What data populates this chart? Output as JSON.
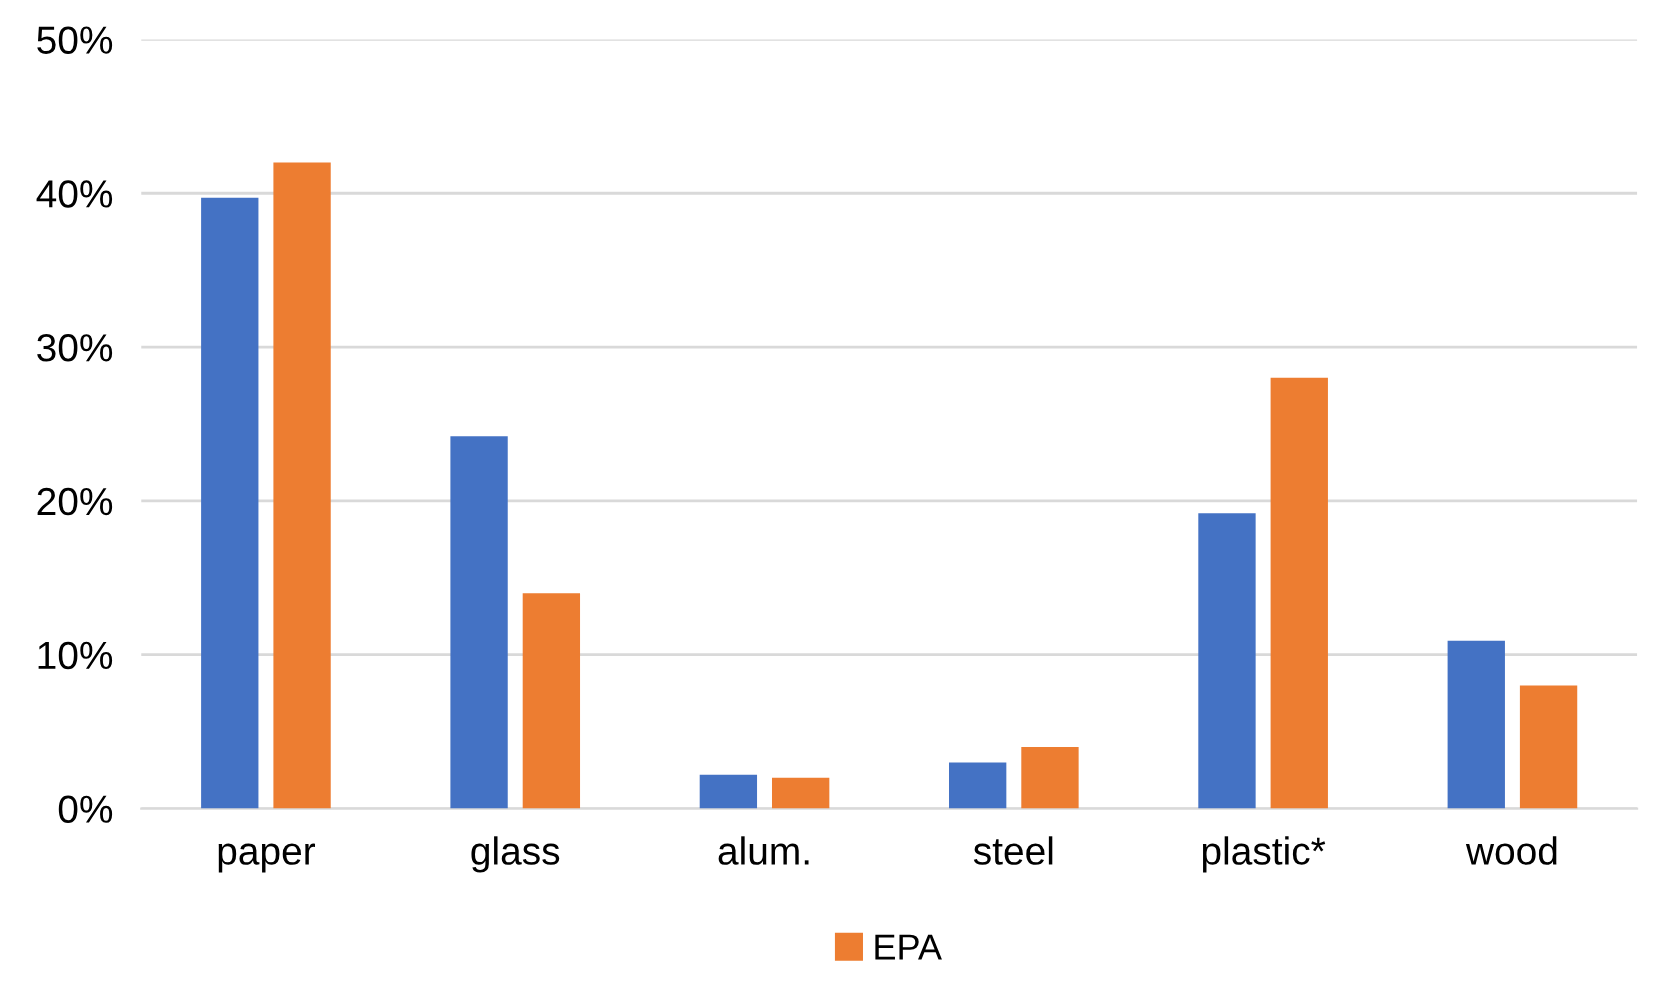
{
  "chart_data": {
    "type": "bar",
    "categories": [
      "paper",
      "glass",
      "alum.",
      "steel",
      "plastic*",
      "wood"
    ],
    "series": [
      {
        "color": "#4472c4",
        "values": [
          39.7,
          24.2,
          2.2,
          3.0,
          19.2,
          10.9
        ]
      },
      {
        "name": "EPA",
        "color": "#ed7d31",
        "values": [
          42.0,
          14.0,
          2.0,
          4.0,
          28.0,
          8.0
        ]
      }
    ],
    "ylim": [
      0,
      50
    ],
    "yticks": [
      {
        "value": 0,
        "label": "0%"
      },
      {
        "value": 10,
        "label": "10%"
      },
      {
        "value": 20,
        "label": "20%"
      },
      {
        "value": 30,
        "label": "30%"
      },
      {
        "value": 40,
        "label": "40%"
      },
      {
        "value": 50,
        "label": "50%"
      }
    ],
    "grid": "y",
    "legend": "bottom"
  }
}
